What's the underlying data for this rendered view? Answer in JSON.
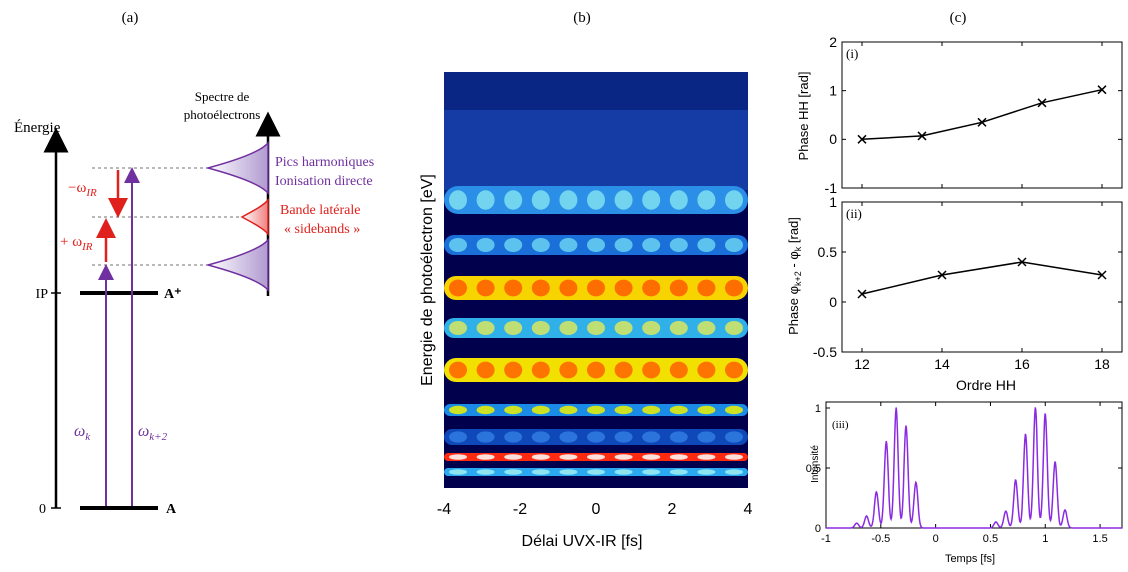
{
  "panel_a": {
    "label": "(a)",
    "energy_axis_label": "Énergie",
    "spectrum_title_line1": "Spectre de",
    "spectrum_title_line2": "photoélectrons",
    "ip_label": "IP",
    "zero_label": "0",
    "ion_level_label": "A⁺",
    "ground_level_label": "A",
    "minus_ir_prefix": "−ω",
    "plus_ir_prefix": "+ ω",
    "ir_subscript": "IR",
    "omega_k": "ω",
    "omega_k_sub": "k",
    "omega_k2_sub": "k+2",
    "harmonic_peaks_line1": "Pics harmoniques",
    "harmonic_peaks_line2": "Ionisation directe",
    "sideband_line1": "Bande latérale",
    "sideband_line2": "« sidebands »",
    "colors": {
      "purple": "#7030a0",
      "red": "#e0201c",
      "black": "#000000"
    }
  },
  "chart_data": [
    {
      "type": "heatmap",
      "panel_label": "(b)",
      "xlabel": "Délai UVX-IR [fs]",
      "ylabel": "Energie de photoélectron [eV]",
      "xlim": [
        -4,
        4
      ],
      "x_ticks": [
        "-4",
        "-2",
        "0",
        "2",
        "4"
      ],
      "colormap": "jet"
    },
    {
      "type": "line",
      "panel_label": "(i)",
      "ylabel": "Phase HH [rad]",
      "xlim": [
        11.5,
        18.5
      ],
      "ylim": [
        -1,
        2
      ],
      "y_ticks": [
        "-1",
        "0",
        "1",
        "2"
      ],
      "x": [
        12,
        13.5,
        15,
        16.5,
        18
      ],
      "y": [
        0.0,
        0.07,
        0.35,
        0.75,
        1.02
      ],
      "marker": "x"
    },
    {
      "type": "line",
      "panel_label": "(ii)",
      "ylabel_main": "Phase φ",
      "ylabel_sub1": "k+2",
      "ylabel_mid": " - φ",
      "ylabel_sub2": "k",
      "ylabel_unit": " [rad]",
      "xlabel": "Ordre HH",
      "xlim": [
        11.5,
        18.5
      ],
      "ylim": [
        -0.5,
        1
      ],
      "y_ticks": [
        "-0.5",
        "0",
        "0.5",
        "1"
      ],
      "x_ticks": [
        "12",
        "14",
        "16",
        "18"
      ],
      "x": [
        12,
        14,
        16,
        18
      ],
      "y": [
        0.08,
        0.27,
        0.4,
        0.27
      ],
      "marker": "x"
    },
    {
      "type": "line",
      "panel_label": "(iii)",
      "ylabel": "Intensité",
      "xlabel": "Temps [fs]",
      "xlim": [
        -1,
        1.7
      ],
      "ylim": [
        0,
        1.05
      ],
      "y_ticks": [
        "0",
        "0.5",
        "1"
      ],
      "x_ticks": [
        "-1",
        "-0.5",
        "0",
        "0.5",
        "1",
        "1.5"
      ],
      "peaks_x": [
        -0.72,
        -0.63,
        -0.54,
        -0.45,
        -0.36,
        -0.27,
        -0.18,
        0.55,
        0.64,
        0.73,
        0.82,
        0.91,
        1.0,
        1.09,
        1.18
      ],
      "peaks_y": [
        0.04,
        0.1,
        0.3,
        0.72,
        1.0,
        0.85,
        0.38,
        0.05,
        0.14,
        0.4,
        0.78,
        1.0,
        0.95,
        0.55,
        0.15
      ],
      "color": "#8a2be2"
    }
  ],
  "panel_b_label": "(b)",
  "panel_c_label": "(c)"
}
